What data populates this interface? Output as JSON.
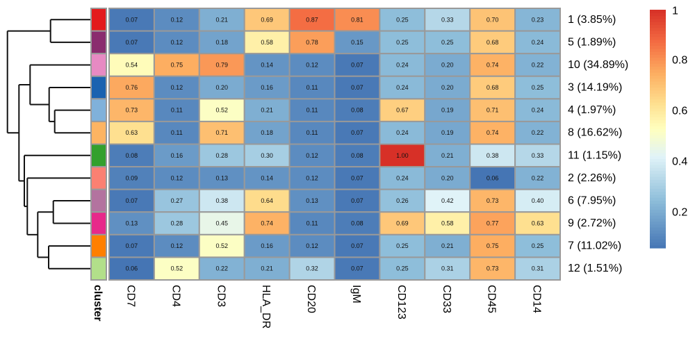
{
  "chart_data": {
    "type": "heatmap",
    "title": "",
    "columns": [
      "CD7",
      "CD4",
      "CD3",
      "HLA_DR",
      "CD20",
      "IgM",
      "CD123",
      "CD33",
      "CD45",
      "CD14"
    ],
    "annotation_label": "cluster",
    "rows": [
      {
        "label": "1 (3.85%)",
        "cluster_color": "#E31A1C",
        "values": [
          0.07,
          0.12,
          0.21,
          0.69,
          0.87,
          0.81,
          0.25,
          0.33,
          0.7,
          0.23
        ]
      },
      {
        "label": "5 (1.89%)",
        "cluster_color": "#8A2C6E",
        "values": [
          0.07,
          0.12,
          0.18,
          0.58,
          0.78,
          0.15,
          0.25,
          0.25,
          0.68,
          0.24
        ]
      },
      {
        "label": "10 (34.89%)",
        "cluster_color": "#E78AC3",
        "values": [
          0.54,
          0.75,
          0.79,
          0.14,
          0.12,
          0.07,
          0.24,
          0.2,
          0.74,
          0.22
        ]
      },
      {
        "label": "3 (14.19%)",
        "cluster_color": "#1A62B0",
        "values": [
          0.76,
          0.12,
          0.2,
          0.16,
          0.11,
          0.07,
          0.24,
          0.2,
          0.68,
          0.25
        ]
      },
      {
        "label": "4 (1.97%)",
        "cluster_color": "#80B1DA",
        "values": [
          0.73,
          0.11,
          0.52,
          0.21,
          0.11,
          0.08,
          0.67,
          0.19,
          0.71,
          0.24
        ]
      },
      {
        "label": "8 (16.62%)",
        "cluster_color": "#FDB462",
        "values": [
          0.63,
          0.11,
          0.71,
          0.18,
          0.11,
          0.07,
          0.24,
          0.19,
          0.74,
          0.22
        ]
      },
      {
        "label": "11 (1.15%)",
        "cluster_color": "#33A02C",
        "values": [
          0.08,
          0.16,
          0.28,
          0.3,
          0.12,
          0.08,
          1.0,
          0.21,
          0.38,
          0.33
        ]
      },
      {
        "label": "2 (2.26%)",
        "cluster_color": "#FB8072",
        "values": [
          0.09,
          0.12,
          0.13,
          0.14,
          0.12,
          0.07,
          0.24,
          0.2,
          0.06,
          0.22
        ]
      },
      {
        "label": "6 (7.95%)",
        "cluster_color": "#B3739F",
        "values": [
          0.07,
          0.27,
          0.38,
          0.64,
          0.13,
          0.07,
          0.26,
          0.42,
          0.73,
          0.4
        ]
      },
      {
        "label": "9 (2.72%)",
        "cluster_color": "#E7298A",
        "values": [
          0.13,
          0.28,
          0.45,
          0.74,
          0.11,
          0.08,
          0.69,
          0.58,
          0.77,
          0.63
        ]
      },
      {
        "label": "7 (11.02%)",
        "cluster_color": "#FF7F00",
        "values": [
          0.07,
          0.12,
          0.52,
          0.16,
          0.12,
          0.07,
          0.25,
          0.21,
          0.75,
          0.25
        ]
      },
      {
        "label": "12 (1.51%)",
        "cluster_color": "#B2DF8A",
        "values": [
          0.06,
          0.52,
          0.22,
          0.21,
          0.32,
          0.07,
          0.25,
          0.31,
          0.73,
          0.31
        ]
      }
    ],
    "color_scale": {
      "range": [
        0.06,
        1.0
      ],
      "stops": [
        [
          0.06,
          "#4575B4"
        ],
        [
          0.25,
          "#8EBEDA"
        ],
        [
          0.42,
          "#E0F3F8"
        ],
        [
          0.53,
          "#FFFFBF"
        ],
        [
          0.63,
          "#FEE090"
        ],
        [
          0.75,
          "#FDAE61"
        ],
        [
          0.87,
          "#F46D43"
        ],
        [
          1.0,
          "#D73027"
        ]
      ],
      "ticks": [
        1,
        0.8,
        0.6,
        0.4,
        0.2
      ],
      "tick_labels": [
        "1",
        "0.8",
        "0.6",
        "0.4",
        "0.2"
      ]
    },
    "legend_placement": "right",
    "row_dendrogram": true
  }
}
